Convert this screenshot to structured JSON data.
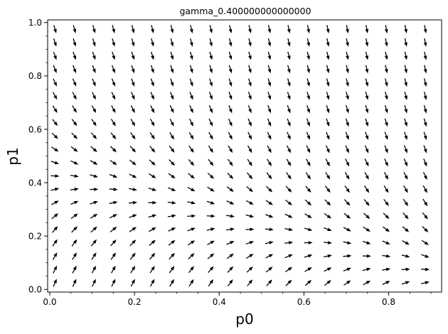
{
  "chart_data": {
    "type": "quiver",
    "title": "gamma_0.400000000000000",
    "xlabel": "p0",
    "ylabel": "p1",
    "xlim": [
      -0.005,
      0.925
    ],
    "ylim": [
      -0.01,
      1.01
    ],
    "xticks": [
      0.0,
      0.2,
      0.4,
      0.6,
      0.8
    ],
    "xtick_labels": [
      "0.0",
      "0.2",
      "0.4",
      "0.6",
      "0.8"
    ],
    "yticks": [
      0.0,
      0.2,
      0.4,
      0.6,
      0.8,
      1.0
    ],
    "ytick_labels": [
      "0.0",
      "0.2",
      "0.4",
      "0.6",
      "0.8",
      "1.0"
    ],
    "grid": false,
    "arrow_color": "#000000",
    "field": {
      "gamma": 0.4,
      "x_start": 0.0125,
      "x_step": 0.046,
      "x_count": 20,
      "y_start": 0.025,
      "y_step": 0.05,
      "y_count": 20
    }
  }
}
